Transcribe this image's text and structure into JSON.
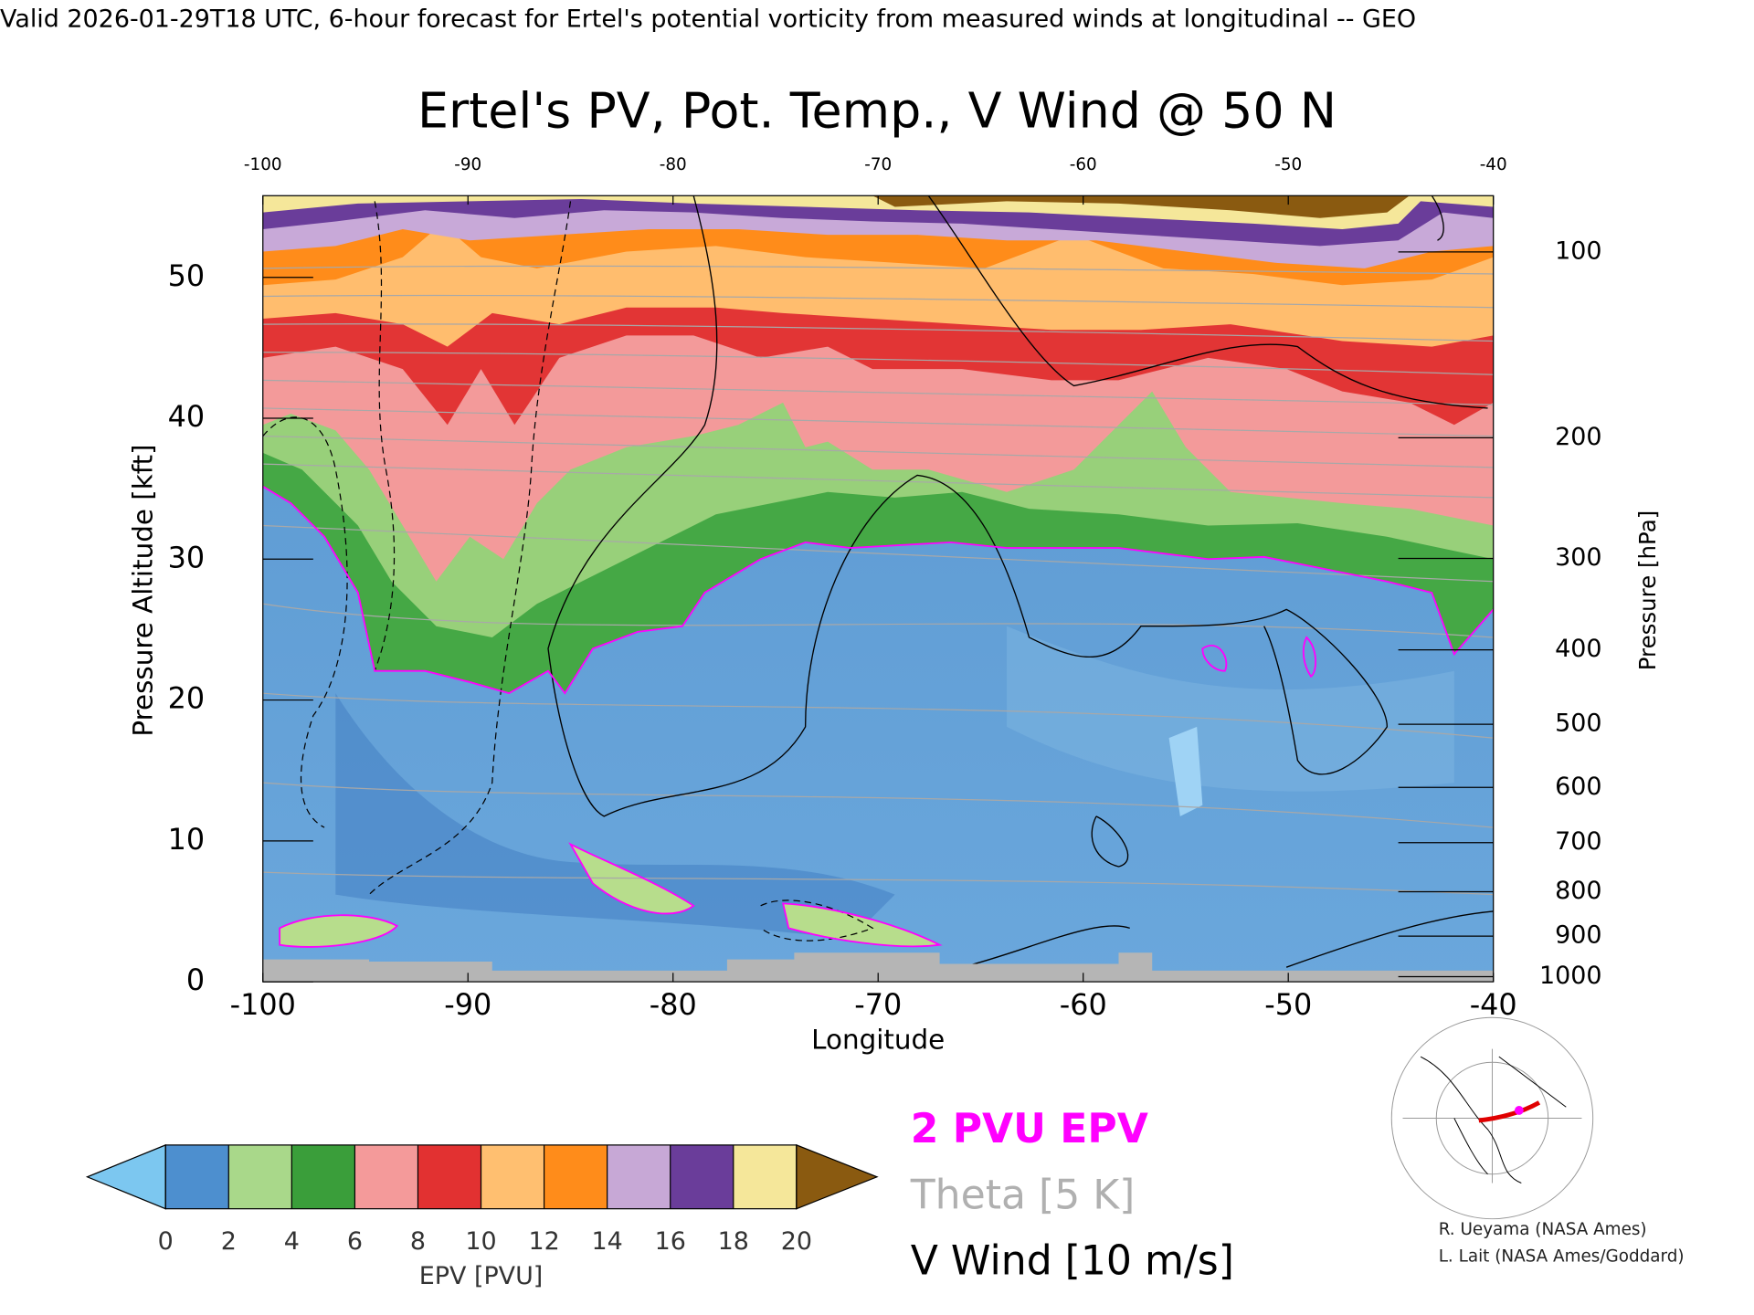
{
  "header": "Valid 2026-01-29T18 UTC, 6-hour forecast for Ertel's potential vorticity from measured winds at longitudinal -- GEO",
  "chart_data": {
    "type": "contour",
    "title": "Ertel's PV, Pot. Temp., V Wind @ 50 N",
    "xlabel": "Longitude",
    "ylabel": "Pressure Altitude [kft]",
    "y2label": "Pressure [hPa]",
    "xlim": [
      -100,
      -40
    ],
    "xticks": [
      -100,
      -90,
      -80,
      -70,
      -60,
      -50,
      -40
    ],
    "ylim": [
      0,
      55.8
    ],
    "yticks": [
      0,
      10,
      20,
      30,
      40,
      50
    ],
    "y2ticks": [
      100,
      200,
      300,
      400,
      500,
      600,
      700,
      800,
      900,
      1000
    ],
    "colorbar": {
      "label": "EPV [PVU]",
      "ticks": [
        0,
        2,
        4,
        6,
        8,
        10,
        12,
        14,
        16,
        18,
        20
      ],
      "colors": [
        "#4d8fcf",
        "#a9d88a",
        "#3a9e3a",
        "#f49a9a",
        "#e23131",
        "#ffbf70",
        "#ff8c1a",
        "#c7a8d6",
        "#6a3d9a",
        "#f5e79a"
      ],
      "under_color": "#7cc7f0",
      "over_color": "#8a5a10"
    },
    "legend": [
      {
        "name": "2 PVU EPV",
        "color": "#ff00ff"
      },
      {
        "name": "Theta [5 K]",
        "color": "#b0b0b0"
      },
      {
        "name": "V Wind [10 m/s]",
        "color": "#000000"
      }
    ]
  },
  "credits": [
    "R. Ueyama (NASA Ames)",
    "L. Lait (NASA Ames/Goddard)"
  ]
}
